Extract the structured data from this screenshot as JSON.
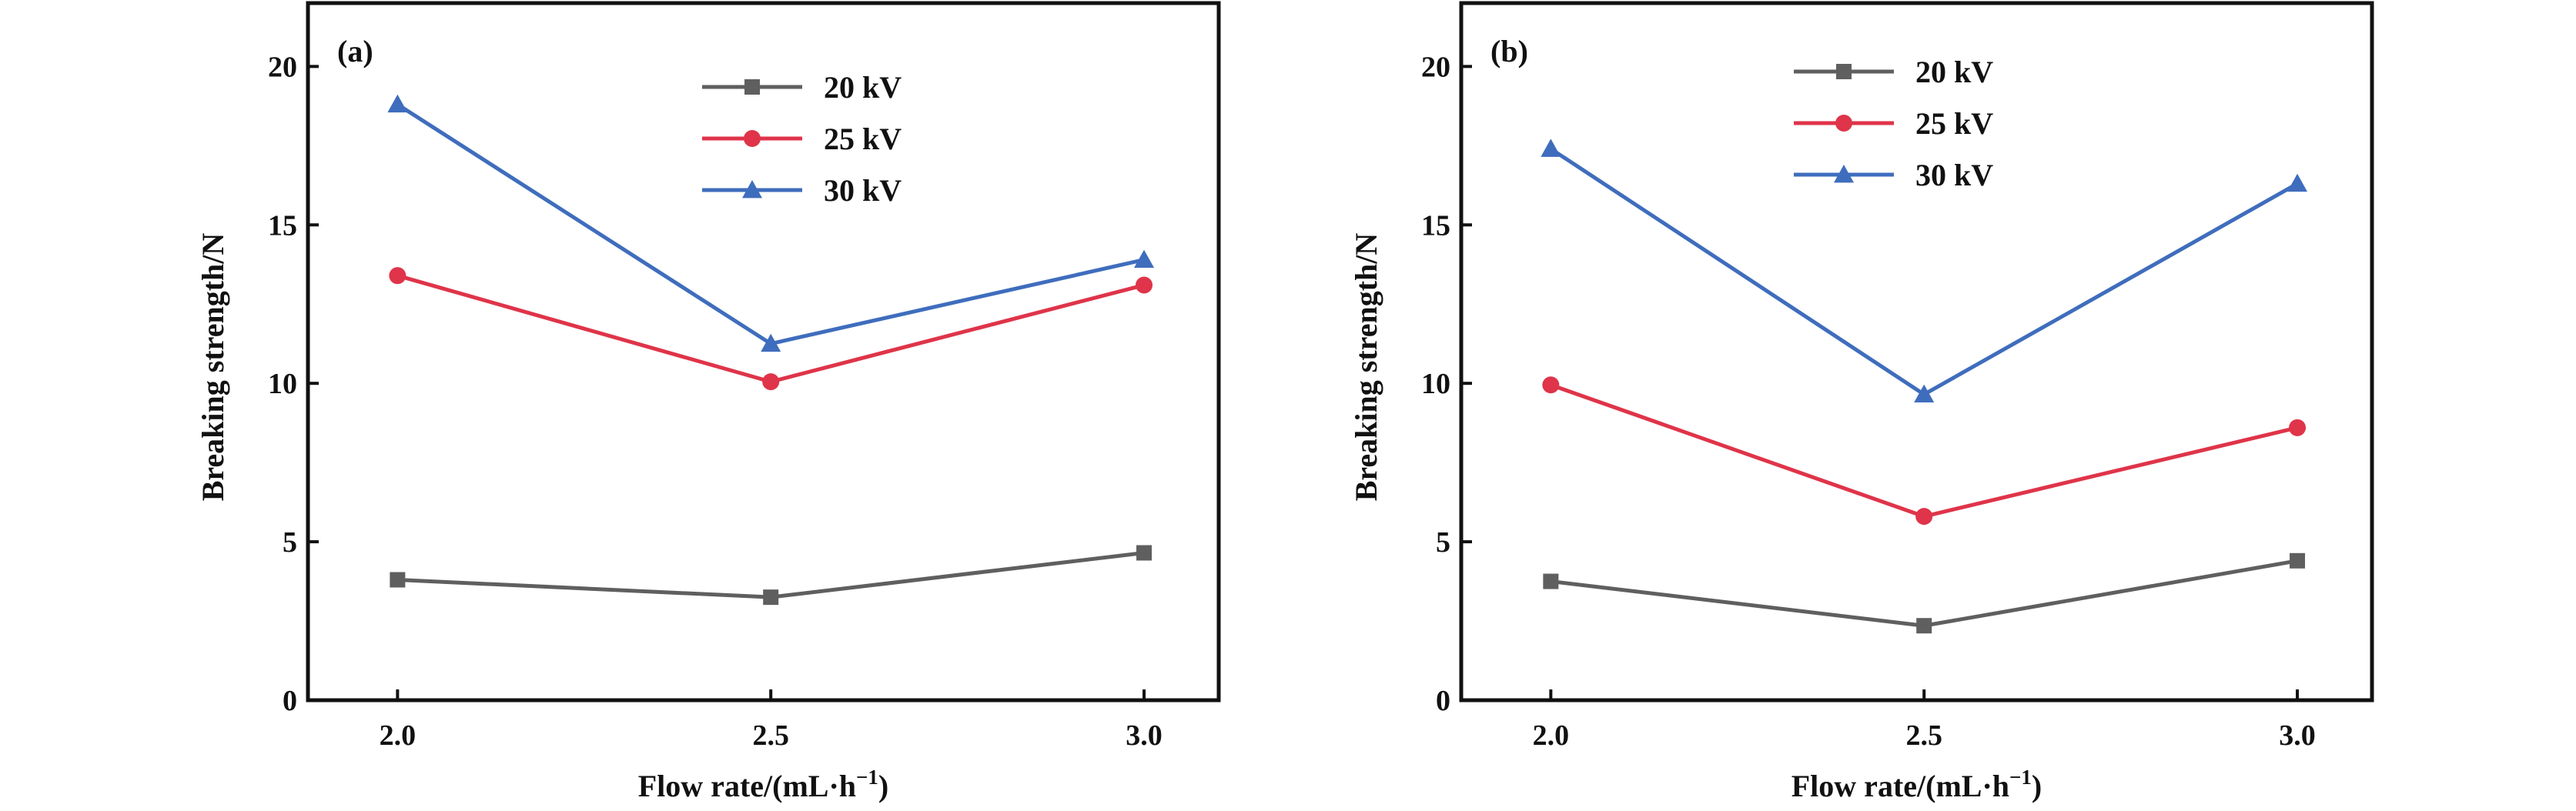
{
  "chart_data": [
    {
      "type": "line",
      "panel_label": "(a)",
      "xlabel": "Flow rate/(mL·h",
      "xlabel_sup": "−1",
      "xlabel_close": ")",
      "ylabel": "Breaking strength/N",
      "x": [
        2.0,
        2.5,
        3.0
      ],
      "x_tick_labels": [
        "2.0",
        "2.5",
        "3.0"
      ],
      "xlim": [
        1.88,
        3.1
      ],
      "ylim": [
        0,
        22
      ],
      "y_ticks": [
        0,
        5,
        10,
        15,
        20
      ],
      "y_tick_labels": [
        "0",
        "5",
        "10",
        "15",
        "20"
      ],
      "legend_placement": "top-center",
      "grid": false,
      "series": [
        {
          "name": "20 kV",
          "values": [
            3.8,
            3.25,
            4.65
          ],
          "color": "#5f5f5f",
          "marker": "square"
        },
        {
          "name": "25 kV",
          "values": [
            13.4,
            10.05,
            13.1
          ],
          "color": "#df3449",
          "marker": "circle"
        },
        {
          "name": "30 kV",
          "values": [
            18.8,
            11.25,
            13.9
          ],
          "color": "#3f6dbd",
          "marker": "triangle"
        }
      ]
    },
    {
      "type": "line",
      "panel_label": "(b)",
      "xlabel": "Flow rate/(mL·h",
      "xlabel_sup": "−1",
      "xlabel_close": ")",
      "ylabel": "Breaking strength/N",
      "x": [
        2.0,
        2.5,
        3.0
      ],
      "x_tick_labels": [
        "2.0",
        "2.5",
        "3.0"
      ],
      "xlim": [
        1.88,
        3.1
      ],
      "ylim": [
        0,
        22
      ],
      "y_ticks": [
        0,
        5,
        10,
        15,
        20
      ],
      "y_tick_labels": [
        "0",
        "5",
        "10",
        "15",
        "20"
      ],
      "legend_placement": "top-left",
      "grid": false,
      "series": [
        {
          "name": "20 kV",
          "values": [
            3.75,
            2.35,
            4.4
          ],
          "color": "#5f5f5f",
          "marker": "square"
        },
        {
          "name": "25 kV",
          "values": [
            9.95,
            5.8,
            8.6
          ],
          "color": "#df3449",
          "marker": "circle"
        },
        {
          "name": "30 kV",
          "values": [
            17.4,
            9.65,
            16.3
          ],
          "color": "#3f6dbd",
          "marker": "triangle"
        }
      ]
    }
  ]
}
